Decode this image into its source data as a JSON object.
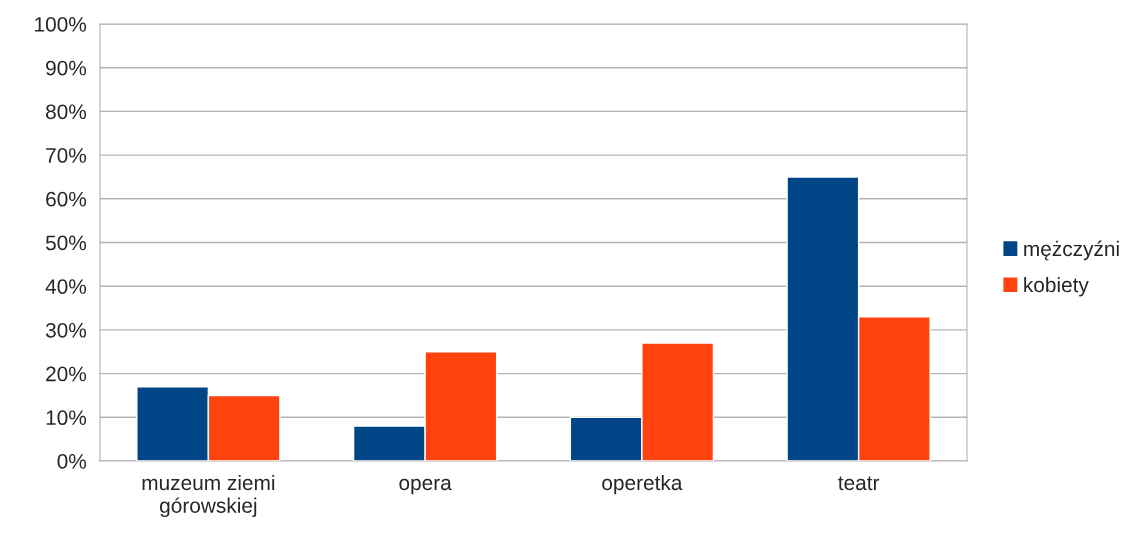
{
  "chart_data": {
    "type": "bar",
    "categories": [
      "muzeum ziemi\ngórowskiej",
      "opera",
      "operetka",
      "teatr"
    ],
    "series": [
      {
        "name": "mężczyźni",
        "color": "#004586",
        "values": [
          17,
          8,
          10,
          65
        ]
      },
      {
        "name": "kobiety",
        "color": "#ff420e",
        "values": [
          15,
          25,
          27,
          33
        ]
      }
    ],
    "ylim": [
      0,
      100
    ],
    "yticks": [
      {
        "value": 0,
        "label": "0%"
      },
      {
        "value": 10,
        "label": "10%"
      },
      {
        "value": 20,
        "label": "20%"
      },
      {
        "value": 30,
        "label": "30%"
      },
      {
        "value": 40,
        "label": "40%"
      },
      {
        "value": 50,
        "label": "50%"
      },
      {
        "value": 60,
        "label": "60%"
      },
      {
        "value": 70,
        "label": "70%"
      },
      {
        "value": 80,
        "label": "80%"
      },
      {
        "value": 90,
        "label": "90%"
      },
      {
        "value": 100,
        "label": "100%"
      }
    ],
    "grid": "y",
    "legend": "right"
  }
}
